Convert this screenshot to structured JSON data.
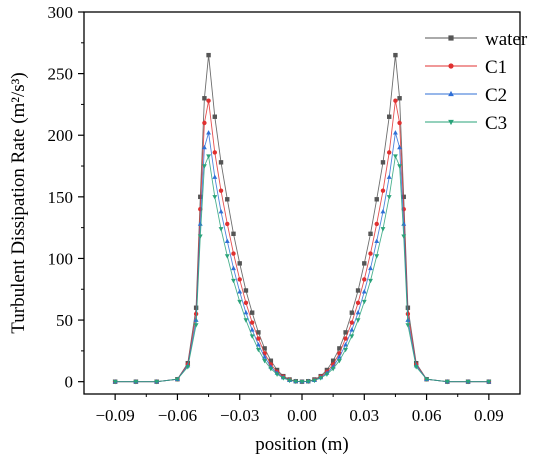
{
  "chart_data": {
    "type": "line",
    "title": "",
    "xlabel": "position (m)",
    "ylabel": "Turbulent Dissipation Rate (m²/s³)",
    "xlim": [
      -0.105,
      0.105
    ],
    "ylim": [
      -10,
      300
    ],
    "xticks": [
      -0.09,
      -0.06,
      -0.03,
      0.0,
      0.03,
      0.06,
      0.09
    ],
    "xtick_labels": [
      "−0.09",
      "−0.06",
      "−0.03",
      "0.00",
      "0.03",
      "0.06",
      "0.09"
    ],
    "yticks": [
      0,
      50,
      100,
      150,
      200,
      250,
      300
    ],
    "ytick_labels": [
      "0",
      "50",
      "100",
      "150",
      "200",
      "250",
      "300"
    ],
    "grid": false,
    "legend_position": "top-right",
    "series": [
      {
        "name": "water",
        "color": "#555555",
        "marker": "square",
        "x": [
          -0.09,
          -0.08,
          -0.07,
          -0.06,
          -0.055,
          -0.051,
          -0.049,
          -0.047,
          -0.045,
          -0.042,
          -0.039,
          -0.036,
          -0.033,
          -0.03,
          -0.027,
          -0.024,
          -0.021,
          -0.018,
          -0.015,
          -0.012,
          -0.009,
          -0.006,
          -0.003,
          0.0,
          0.003,
          0.006,
          0.009,
          0.012,
          0.015,
          0.018,
          0.021,
          0.024,
          0.027,
          0.03,
          0.033,
          0.036,
          0.039,
          0.042,
          0.045,
          0.047,
          0.049,
          0.051,
          0.055,
          0.06,
          0.07,
          0.08,
          0.09
        ],
        "y": [
          0,
          0,
          0,
          2,
          15,
          60,
          150,
          230,
          265,
          215,
          178,
          148,
          120,
          96,
          74,
          56,
          40,
          27,
          17,
          9.5,
          4.5,
          1.8,
          0.4,
          0,
          0.4,
          1.8,
          4.5,
          9.5,
          17,
          27,
          40,
          56,
          74,
          96,
          120,
          148,
          178,
          215,
          265,
          230,
          150,
          60,
          15,
          2,
          0,
          0,
          0
        ]
      },
      {
        "name": "C1",
        "color": "#e03030",
        "marker": "circle",
        "x": [
          -0.09,
          -0.08,
          -0.07,
          -0.06,
          -0.055,
          -0.051,
          -0.049,
          -0.047,
          -0.045,
          -0.042,
          -0.039,
          -0.036,
          -0.033,
          -0.03,
          -0.027,
          -0.024,
          -0.021,
          -0.018,
          -0.015,
          -0.012,
          -0.009,
          -0.006,
          -0.003,
          0.0,
          0.003,
          0.006,
          0.009,
          0.012,
          0.015,
          0.018,
          0.021,
          0.024,
          0.027,
          0.03,
          0.033,
          0.036,
          0.039,
          0.042,
          0.045,
          0.047,
          0.049,
          0.051,
          0.055,
          0.06,
          0.07,
          0.08,
          0.09
        ],
        "y": [
          0,
          0,
          0,
          2,
          14,
          55,
          140,
          210,
          228,
          186,
          155,
          128,
          104,
          83,
          64,
          48,
          35,
          23,
          14,
          8,
          4,
          1.5,
          0.3,
          0,
          0.3,
          1.5,
          4,
          8,
          14,
          23,
          35,
          48,
          64,
          83,
          104,
          128,
          155,
          186,
          228,
          210,
          140,
          55,
          14,
          2,
          0,
          0,
          0
        ]
      },
      {
        "name": "C2",
        "color": "#2f6fd6",
        "marker": "triangle-up",
        "x": [
          -0.09,
          -0.08,
          -0.07,
          -0.06,
          -0.055,
          -0.051,
          -0.049,
          -0.047,
          -0.045,
          -0.042,
          -0.039,
          -0.036,
          -0.033,
          -0.03,
          -0.027,
          -0.024,
          -0.021,
          -0.018,
          -0.015,
          -0.012,
          -0.009,
          -0.006,
          -0.003,
          0.0,
          0.003,
          0.006,
          0.009,
          0.012,
          0.015,
          0.018,
          0.021,
          0.024,
          0.027,
          0.03,
          0.033,
          0.036,
          0.039,
          0.042,
          0.045,
          0.047,
          0.049,
          0.051,
          0.055,
          0.06,
          0.07,
          0.08,
          0.09
        ],
        "y": [
          0,
          0,
          0,
          2,
          13,
          50,
          128,
          190,
          202,
          166,
          138,
          114,
          92,
          73,
          56,
          42,
          30,
          20,
          12,
          7,
          3.4,
          1.2,
          0.3,
          0,
          0.3,
          1.2,
          3.4,
          7,
          12,
          20,
          30,
          42,
          56,
          73,
          92,
          114,
          138,
          166,
          202,
          190,
          128,
          50,
          13,
          2,
          0,
          0,
          0
        ]
      },
      {
        "name": "C3",
        "color": "#2aa37a",
        "marker": "triangle-down",
        "x": [
          -0.09,
          -0.08,
          -0.07,
          -0.06,
          -0.055,
          -0.051,
          -0.049,
          -0.047,
          -0.045,
          -0.042,
          -0.039,
          -0.036,
          -0.033,
          -0.03,
          -0.027,
          -0.024,
          -0.021,
          -0.018,
          -0.015,
          -0.012,
          -0.009,
          -0.006,
          -0.003,
          0.0,
          0.003,
          0.006,
          0.009,
          0.012,
          0.015,
          0.018,
          0.021,
          0.024,
          0.027,
          0.03,
          0.033,
          0.036,
          0.039,
          0.042,
          0.045,
          0.047,
          0.049,
          0.051,
          0.055,
          0.06,
          0.07,
          0.08,
          0.09
        ],
        "y": [
          0,
          0,
          0,
          2,
          12,
          46,
          118,
          175,
          183,
          150,
          124,
          102,
          82,
          65,
          50,
          37,
          26,
          17,
          10.5,
          6,
          3,
          1,
          0.2,
          0,
          0.2,
          1,
          3,
          6,
          10.5,
          17,
          26,
          37,
          50,
          65,
          82,
          102,
          124,
          150,
          183,
          175,
          118,
          46,
          12,
          2,
          0,
          0,
          0
        ]
      }
    ]
  }
}
